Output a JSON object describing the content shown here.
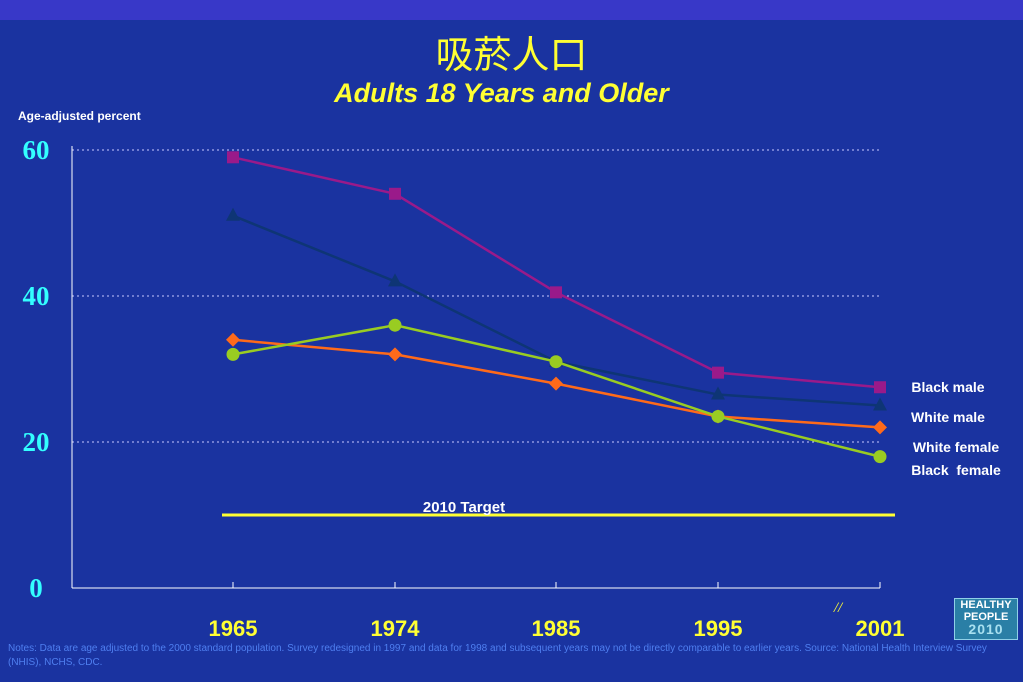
{
  "header": {
    "title_cn": "吸菸人口",
    "subtitle": "Adults 18 Years and Older"
  },
  "chart_data": {
    "type": "line",
    "ylabel": "Age-adjusted percent",
    "ylim": [
      0,
      60
    ],
    "yticks": [
      0,
      20,
      40,
      60
    ],
    "categories": [
      "1965",
      "1974",
      "1985",
      "1995",
      "2001"
    ],
    "grid": true,
    "axis_break_mark": "//",
    "series": [
      {
        "name": "Black male",
        "values": [
          59,
          54,
          40.5,
          29.5,
          27.5
        ],
        "color": "#9a1a8a",
        "marker": "square"
      },
      {
        "name": "White male",
        "values": [
          51,
          42,
          31,
          26.5,
          25
        ],
        "color": "#0e3575",
        "marker": "triangle"
      },
      {
        "name": "White female",
        "values": [
          34,
          32,
          28,
          23.5,
          22
        ],
        "color": "#ff6a1a",
        "marker": "diamond"
      },
      {
        "name": "Black  female",
        "values": [
          32,
          36,
          31,
          23.5,
          18
        ],
        "color": "#99cc22",
        "marker": "circle"
      }
    ],
    "target": {
      "label": "2010 Target",
      "value": 10,
      "color": "#ffff33"
    }
  },
  "notes": "Notes: Data are age adjusted to the 2000 standard population.  Survey redesigned in 1997 and data for 1998 and subsequent years may not be directly comparable to earlier years.  Source: National Health Interview Survey (NHIS), NCHS, CDC.",
  "logo": {
    "line1": "HEALTHY",
    "line2": "PEOPLE",
    "line3": "2010"
  }
}
